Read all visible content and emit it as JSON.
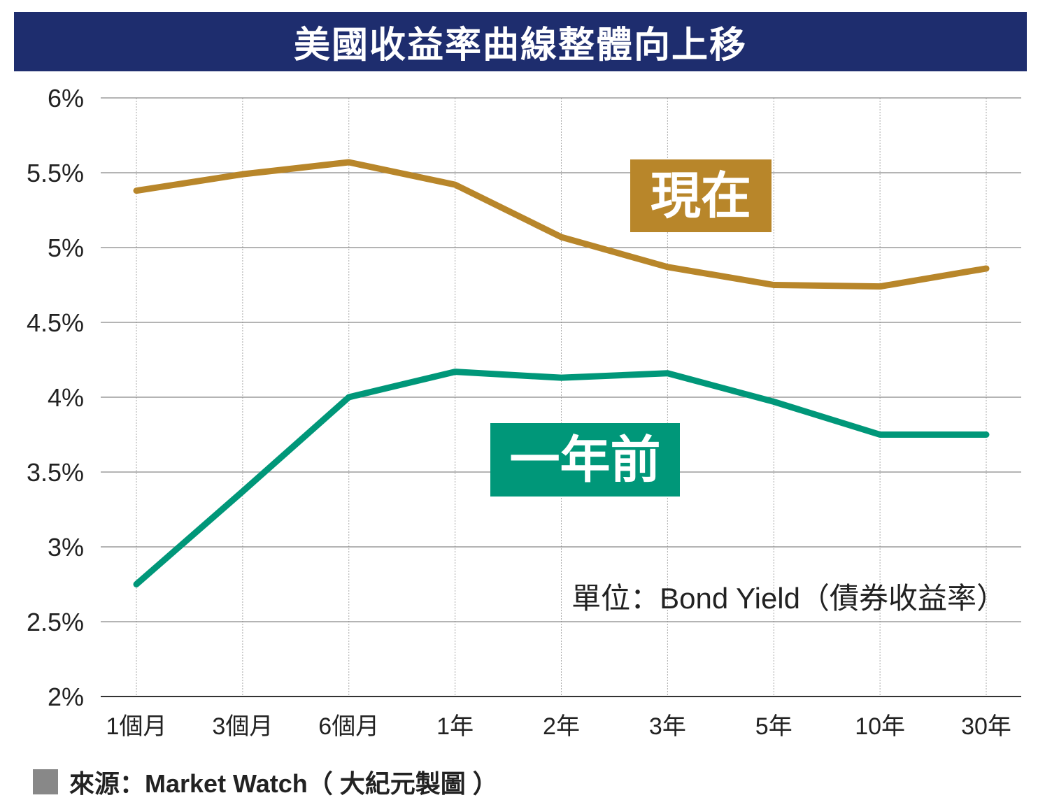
{
  "colors": {
    "title_bg": "#1e2d6e",
    "now": "#b8862a",
    "year_ago": "#009779",
    "grid": "#888888"
  },
  "chart_data": {
    "type": "line",
    "title": "美國收益率曲線整體向上移",
    "categories": [
      "1個月",
      "3個月",
      "6個月",
      "1年",
      "2年",
      "3年",
      "5年",
      "10年",
      "30年"
    ],
    "y_ticks": [
      "2%",
      "2.5%",
      "3%",
      "3.5%",
      "4%",
      "4.5%",
      "5%",
      "5.5%",
      "6%"
    ],
    "ylim": [
      2,
      6
    ],
    "grid": true,
    "series": [
      {
        "name": "現在",
        "values": [
          5.38,
          5.49,
          5.57,
          5.42,
          5.07,
          4.87,
          4.75,
          4.74,
          4.86
        ]
      },
      {
        "name": "一年前",
        "values": [
          2.75,
          3.37,
          4.0,
          4.17,
          4.13,
          4.16,
          3.97,
          3.75,
          3.75
        ]
      }
    ],
    "unit_note": "單位：Bond Yield（債券收益率）"
  },
  "source": "來源：Market Watch（ 大紀元製圖 ）"
}
